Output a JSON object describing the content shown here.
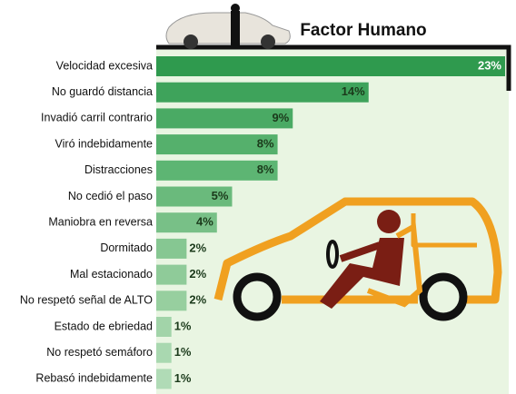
{
  "chart_data": {
    "type": "bar",
    "orientation": "horizontal",
    "title": "Factor Humano",
    "categories": [
      "Velocidad excesiva",
      "No guardó distancia",
      "Invadió carril contrario",
      "Viró indebidamente",
      "Distracciones",
      "No cedió el paso",
      "Maniobra en reversa",
      "Dormitado",
      "Mal estacionado",
      "No respetó señal de ALTO",
      "Estado de ebriedad",
      "No respetó semáforo",
      "Rebasó indebidamente"
    ],
    "values": [
      23,
      14,
      9,
      8,
      8,
      5,
      4,
      2,
      2,
      2,
      1,
      1,
      1
    ],
    "value_labels": [
      "23%",
      "14%",
      "9%",
      "8%",
      "8%",
      "5%",
      "4%",
      "2%",
      "2%",
      "2%",
      "1%",
      "1%",
      "1%"
    ],
    "colors": [
      "#2f9a4e",
      "#3ea35b",
      "#4aaa64",
      "#55b06c",
      "#5db573",
      "#6aba7c",
      "#78c087",
      "#86c792",
      "#8fcb99",
      "#97cf9f",
      "#a2d4a9",
      "#a9d8b0",
      "#b0dbb6"
    ],
    "xlim": [
      0,
      23
    ]
  }
}
